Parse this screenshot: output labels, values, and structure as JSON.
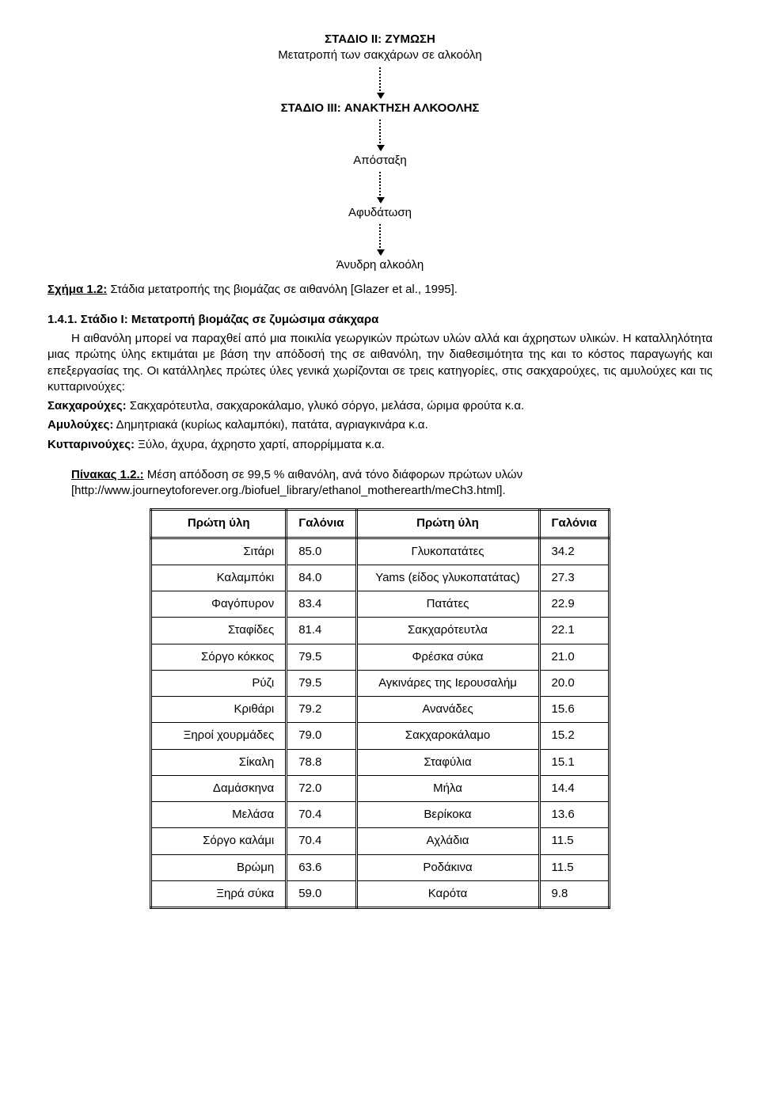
{
  "flow": {
    "stage2_title": "ΣΤΑΔΙΟ II: ΖΥΜΩΣΗ",
    "stage2_sub": "Μετατροπή των σακχάρων σε αλκοόλη",
    "stage3_title": "ΣΤΑΔΙΟ III: ΑΝΑΚΤΗΣΗ ΑΛΚΟΟΛΗΣ",
    "step_a": "Απόσταξη",
    "step_b": "Αφυδάτωση",
    "step_c": "Άνυδρη αλκοόλη"
  },
  "figure": {
    "label": "Σχήμα 1.2:",
    "text": " Στάδια μετατροπής της βιομάζας σε αιθανόλη [Glazer et al., 1995]."
  },
  "section": {
    "num": "1.4.1. ",
    "title": "Στάδιο I: Μετατροπή βιομάζας σε ζυμώσιμα σάκχαρα",
    "p1a": "Η αιθανόλη μπορεί να παραχθεί από μια ποικιλία γεωργικών πρώτων υλών αλλά και άχρηστων υλικών. Η καταλληλότητα μιας πρώτης ύλης εκτιμάται με βάση την απόδοσή της σε αιθανόλη, την διαθεσιμότητα της και το κόστος παραγωγής και επεξεργασίας της. Οι κατάλληλες πρώτες ύλες γενικά χωρίζονται σε τρεις κατηγορίες, στις σακχαρούχες, τις αμυλούχες και τις κυτταρινούχες:",
    "l1_label": "Σακχαρούχες:",
    "l1_text": " Σακχαρότευτλα, σακχαροκάλαμο, γλυκό σόργο, μελάσα, ώριμα φρούτα κ.α.",
    "l2_label": "Αμυλούχες:",
    "l2_text": " Δημητριακά (κυρίως καλαμπόκι), πατάτα, αγριαγκινάρα κ.α.",
    "l3_label": "Κυτταρινούχες:",
    "l3_text": " Ξύλο, άχυρα, άχρηστο χαρτί, απορρίμματα κ.α."
  },
  "table": {
    "caption_label": "Πίνακας 1.2.:",
    "caption_text": " Μέση απόδοση σε 99,5 % αιθανόλη, ανά τόνο διάφορων πρώτων υλών [http://www.journeytoforever.org./biofuel_library/ethanol_motherearth/meCh3.html].",
    "h1": "Πρώτη ύλη",
    "h2": "Γαλόνια",
    "h3": "Πρώτη ύλη",
    "h4": "Γαλόνια",
    "rows": [
      {
        "a": "Σιτάρι",
        "av": "85.0",
        "b": "Γλυκοπατάτες",
        "bv": "34.2"
      },
      {
        "a": "Καλαμπόκι",
        "av": "84.0",
        "b": "Yams (είδος γλυκοπατάτας)",
        "bv": "27.3"
      },
      {
        "a": "Φαγόπυρον",
        "av": "83.4",
        "b": "Πατάτες",
        "bv": "22.9"
      },
      {
        "a": "Σταφίδες",
        "av": "81.4",
        "b": "Σακχαρότευτλα",
        "bv": "22.1"
      },
      {
        "a": "Σόργο κόκκος",
        "av": "79.5",
        "b": "Φρέσκα σύκα",
        "bv": "21.0"
      },
      {
        "a": "Ρύζι",
        "av": "79.5",
        "b": "Αγκινάρες της Ιερουσαλήμ",
        "bv": "20.0"
      },
      {
        "a": "Κριθάρι",
        "av": "79.2",
        "b": "Ανανάδες",
        "bv": "15.6"
      },
      {
        "a": "Ξηροί χουρμάδες",
        "av": "79.0",
        "b": "Σακχαροκάλαμο",
        "bv": "15.2"
      },
      {
        "a": "Σίκαλη",
        "av": "78.8",
        "b": "Σταφύλια",
        "bv": "15.1"
      },
      {
        "a": "Δαμάσκηνα",
        "av": "72.0",
        "b": "Μήλα",
        "bv": "14.4"
      },
      {
        "a": "Μελάσα",
        "av": "70.4",
        "b": "Βερίκοκα",
        "bv": "13.6"
      },
      {
        "a": "Σόργο καλάμι",
        "av": "70.4",
        "b": "Αχλάδια",
        "bv": "11.5"
      },
      {
        "a": "Βρώμη",
        "av": "63.6",
        "b": "Ροδάκινα",
        "bv": "11.5"
      },
      {
        "a": "Ξηρά σύκα",
        "av": "59.0",
        "b": "Καρότα",
        "bv": "9.8"
      }
    ]
  }
}
